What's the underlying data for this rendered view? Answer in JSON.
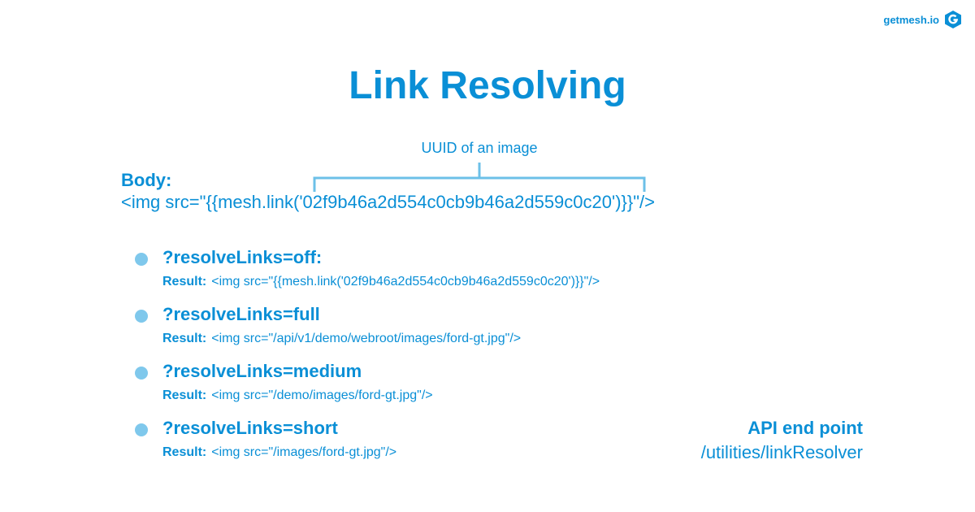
{
  "brand": {
    "text": "getmesh.io"
  },
  "title": "Link Resolving",
  "uuid_label": "UUID of an image",
  "body": {
    "label": "Body:",
    "code": "<img src=\"{{mesh.link('02f9b46a2d554c0cb9b46a2d559c0c20')}}\"/>"
  },
  "options": [
    {
      "param": "?resolveLinks=off:",
      "result_label": "Result:",
      "result": "<img src=\"{{mesh.link('02f9b46a2d554c0cb9b46a2d559c0c20')}}\"/>"
    },
    {
      "param": "?resolveLinks=full",
      "result_label": "Result:",
      "result": "<img src=\"/api/v1/demo/webroot/images/ford-gt.jpg\"/>"
    },
    {
      "param": "?resolveLinks=medium",
      "result_label": "Result:",
      "result": "<img src=\"/demo/images/ford-gt.jpg\"/>"
    },
    {
      "param": "?resolveLinks=short",
      "result_label": "Result:",
      "result": "<img src=\"/images/ford-gt.jpg\"/>"
    }
  ],
  "api": {
    "title": "API end point",
    "path": "/utilities/linkResolver"
  },
  "colors": {
    "primary": "#0a8fd6",
    "bullet": "#7fc8ec",
    "bracket": "#6cc0e8"
  }
}
